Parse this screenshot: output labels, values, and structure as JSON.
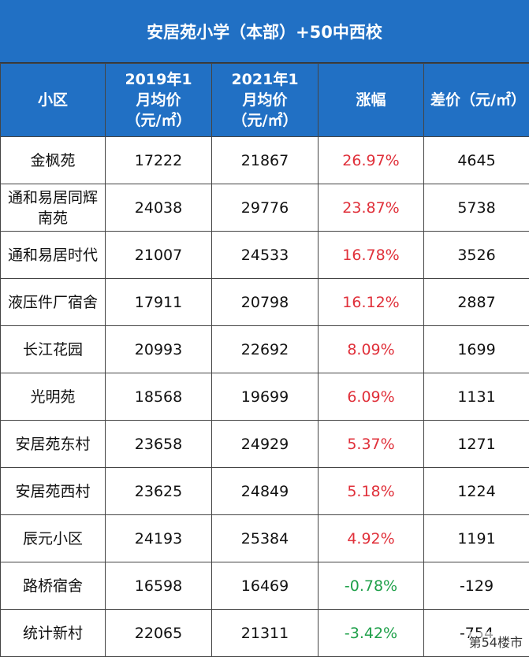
{
  "title": "安居苑小学（本部）+50中西校",
  "table": {
    "header": [
      "小区",
      "2019年1月均价（元/㎡）",
      "2021年1月均价（元/㎡）",
      "涨幅",
      "差价（元/㎡）"
    ],
    "rows": [
      [
        "金枫苑",
        "17222",
        "21867",
        "26.97%",
        "4645"
      ],
      [
        "通和易居同辉南苑",
        "24038",
        "29776",
        "23.87%",
        "5738"
      ],
      [
        "通和易居时代",
        "21007",
        "24533",
        "16.78%",
        "3526"
      ],
      [
        "液压件厂宿舍",
        "17911",
        "20798",
        "16.12%",
        "2887"
      ],
      [
        "长江花园",
        "20993",
        "22692",
        "8.09%",
        "1699"
      ],
      [
        "光明苑",
        "18568",
        "19699",
        "6.09%",
        "1131"
      ],
      [
        "安居苑东村",
        "23658",
        "24929",
        "5.37%",
        "1271"
      ],
      [
        "安居苑西村",
        "23625",
        "24849",
        "5.18%",
        "1224"
      ],
      [
        "辰元小区",
        "24193",
        "25384",
        "4.92%",
        "1191"
      ],
      [
        "路桥宿舍",
        "16598",
        "16469",
        "-0.78%",
        "-129"
      ],
      [
        "统计新村",
        "22065",
        "21311",
        "-3.42%",
        "-754"
      ]
    ]
  },
  "watermark": "第54楼市"
}
